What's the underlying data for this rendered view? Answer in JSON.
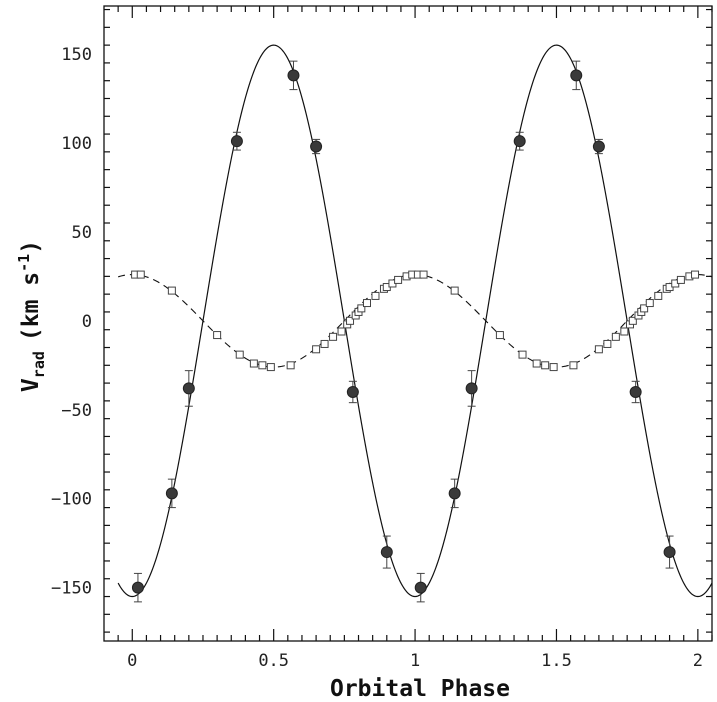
{
  "chart_data": {
    "type": "scatter",
    "title": "",
    "xlabel": "Orbital Phase",
    "ylabel": {
      "main": "V",
      "subscript": "rad",
      "units_open": "(km s",
      "units_exp": "-1",
      "units_close": ")"
    },
    "xlim": [
      -0.1,
      2.05
    ],
    "ylim": [
      -180,
      177
    ],
    "x_ticks": [
      0,
      0.5,
      1,
      1.5,
      2
    ],
    "x_tick_labels": [
      "0",
      "0.5",
      "1",
      "1.5",
      "2"
    ],
    "y_ticks": [
      -150,
      -100,
      -50,
      0,
      50,
      100,
      150
    ],
    "y_tick_labels": [
      "−150",
      "−100",
      "−50",
      "0",
      "50",
      "100",
      "150"
    ],
    "grid": false,
    "series": [
      {
        "style": "filled-circle-with-errorbars",
        "x": [
          0.02,
          0.14,
          0.2,
          0.37,
          0.57,
          0.65,
          0.78,
          0.9,
          1.02,
          1.14,
          1.2,
          1.37,
          1.57,
          1.65,
          1.78,
          1.9
        ],
        "y": [
          -150,
          -97,
          -38,
          101,
          138,
          98,
          -40,
          -130,
          -150,
          -97,
          -38,
          101,
          138,
          98,
          -40,
          -130
        ],
        "err": [
          8,
          8,
          10,
          5,
          8,
          4,
          6,
          9,
          8,
          8,
          10,
          5,
          8,
          4,
          6,
          9
        ]
      },
      {
        "style": "open-square",
        "x": [
          0.01,
          0.03,
          0.14,
          0.3,
          0.38,
          0.43,
          0.46,
          0.49,
          0.56,
          0.65,
          0.68,
          0.71,
          0.74,
          0.76,
          0.77,
          0.79,
          0.8,
          0.81,
          0.83,
          0.86,
          0.89,
          0.9,
          0.92,
          0.94,
          0.97,
          0.99,
          1.01,
          1.03,
          1.14,
          1.3,
          1.38,
          1.43,
          1.46,
          1.49,
          1.56,
          1.65,
          1.68,
          1.71,
          1.74,
          1.76,
          1.77,
          1.79,
          1.8,
          1.81,
          1.83,
          1.86,
          1.89,
          1.9,
          1.92,
          1.94,
          1.97,
          1.99
        ],
        "y": [
          26,
          26,
          17,
          -8,
          -19,
          -24,
          -25,
          -26,
          -25,
          -16,
          -13,
          -9,
          -6,
          -2,
          0,
          3,
          5,
          7,
          10,
          14,
          18,
          19,
          21,
          23,
          25,
          26,
          26,
          26,
          17,
          -8,
          -19,
          -24,
          -25,
          -26,
          -25,
          -16,
          -13,
          -9,
          -6,
          -2,
          0,
          3,
          5,
          7,
          10,
          14,
          18,
          19,
          21,
          23,
          25,
          26
        ]
      }
    ],
    "fits": [
      {
        "style": "solid",
        "gamma": 0,
        "K": 155,
        "phase_of_max": 0.5,
        "x_range": [
          -0.05,
          2.05
        ]
      },
      {
        "style": "dashed",
        "gamma": 0,
        "K": 26,
        "phase_of_max": 0.0,
        "x_range": [
          -0.05,
          2.05
        ]
      }
    ]
  }
}
